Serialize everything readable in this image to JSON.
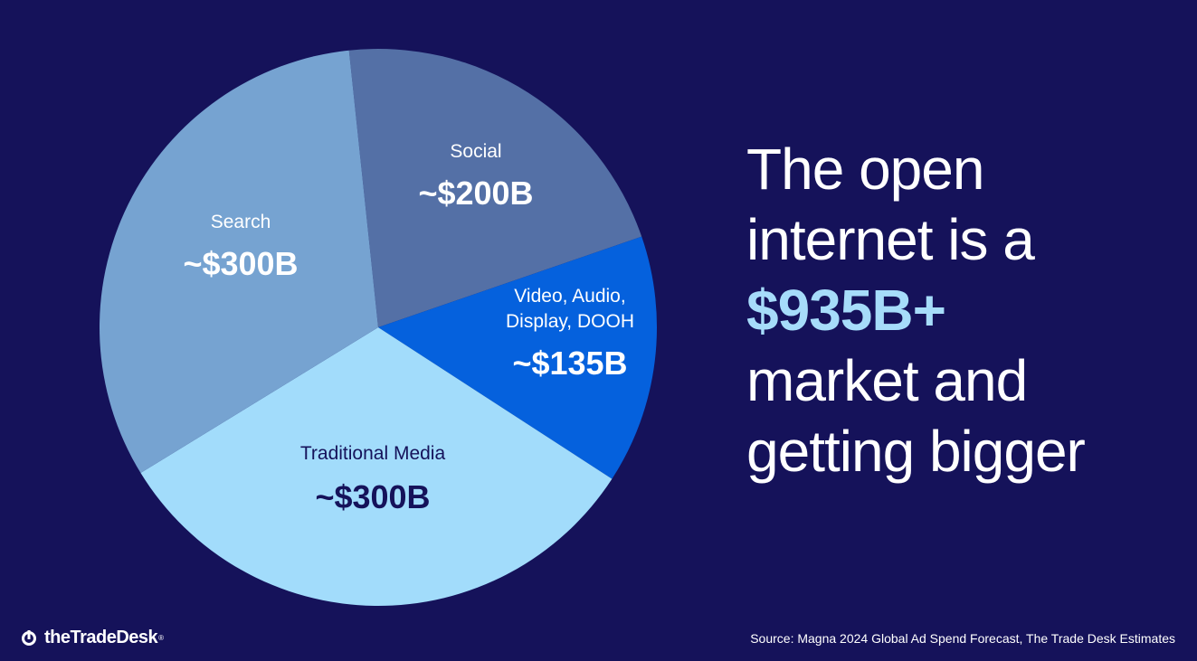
{
  "chart_data": {
    "type": "pie",
    "slices": [
      {
        "label": "Social",
        "value_label": "~$200B",
        "value": 200,
        "color": "#5470a6",
        "text_color": "#ffffff"
      },
      {
        "label": "Video, Audio,\nDisplay, DOOH",
        "value_label": "~$135B",
        "value": 135,
        "color": "#0561dd",
        "text_color": "#ffffff"
      },
      {
        "label": "Traditional Media",
        "value_label": "~$300B",
        "value": 300,
        "color": "#a2dcfb",
        "text_color": "#15125a"
      },
      {
        "label": "Search",
        "value_label": "~$300B",
        "value": 300,
        "color": "#76a3d1",
        "text_color": "#ffffff"
      }
    ]
  },
  "headline": {
    "line1": "The open",
    "line2": "internet is a",
    "highlight": "$935B+",
    "line4": "market and",
    "line5": "getting bigger",
    "highlight_color": "#a6dcfa"
  },
  "footer": {
    "logo_text": "theTradeDesk",
    "logo_mark": "®",
    "source": "Source: Magna 2024 Global Ad Spend Forecast, The Trade Desk Estimates"
  }
}
